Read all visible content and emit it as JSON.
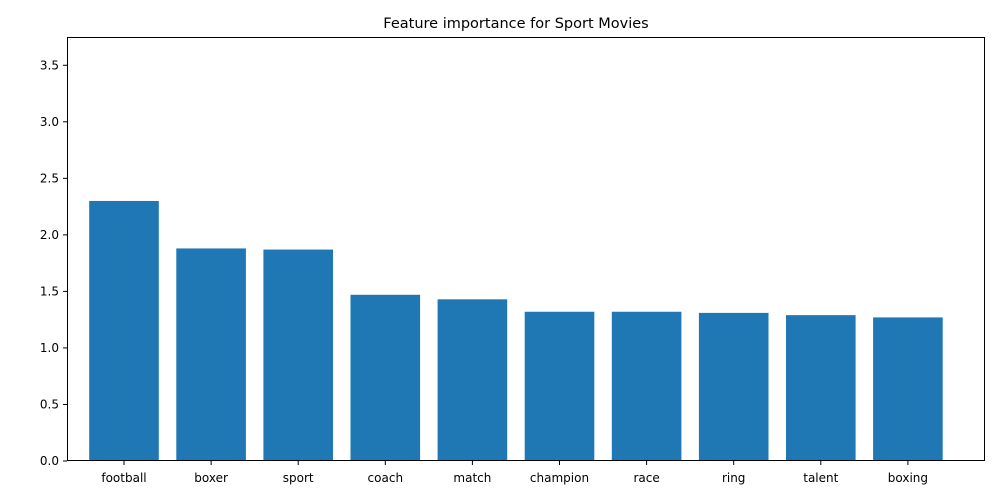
{
  "chart_data": {
    "type": "bar",
    "title": "Feature importance for Sport Movies",
    "xlabel": "",
    "ylabel": "",
    "categories": [
      "football",
      "boxer",
      "sport",
      "coach",
      "match",
      "champion",
      "race",
      "ring",
      "talent",
      "boxing"
    ],
    "values": [
      2.3,
      1.88,
      1.87,
      1.47,
      1.43,
      1.32,
      1.32,
      1.31,
      1.29,
      1.27
    ],
    "ylim": [
      0,
      3.75
    ],
    "yticks": [
      "0.0",
      "0.5",
      "1.0",
      "1.5",
      "2.0",
      "2.5",
      "3.0",
      "3.5"
    ],
    "grid": false,
    "legend": "none",
    "bar_color": "#1f77b4"
  }
}
